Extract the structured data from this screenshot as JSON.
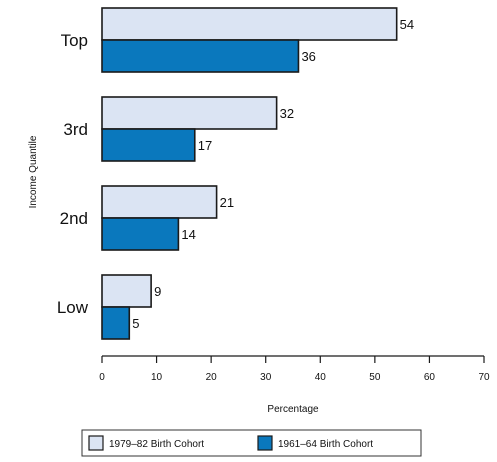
{
  "chart_data": {
    "type": "bar",
    "orientation": "horizontal",
    "categories": [
      "Top",
      "3rd",
      "2nd",
      "Low"
    ],
    "series": [
      {
        "name": "1979–82 Birth Cohort",
        "values": [
          54,
          32,
          21,
          9
        ],
        "color": "#dbe4f3"
      },
      {
        "name": "1961–64 Birth Cohort",
        "values": [
          36,
          17,
          14,
          5
        ],
        "color": "#0a78bd"
      }
    ],
    "xlabel": "Percentage",
    "ylabel": "Income Quantile",
    "xlim": [
      0,
      70
    ],
    "xticks": [
      0,
      10,
      20,
      30,
      40,
      50,
      60,
      70
    ],
    "legend_position": "bottom",
    "grid": false
  }
}
